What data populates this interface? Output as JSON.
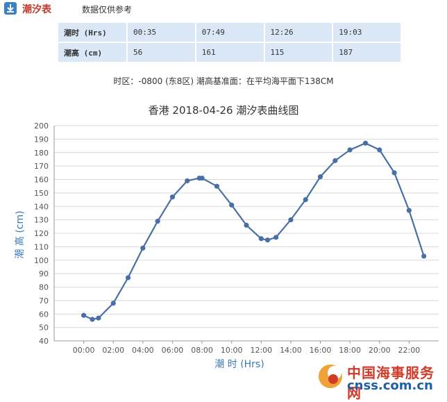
{
  "header": {
    "title": "潮汐表",
    "note": "数据仅供参考",
    "icon": "download-icon"
  },
  "tide_table": {
    "row_time_label": "潮时 (Hrs)",
    "row_height_label": "潮高 (cm)",
    "times": [
      "00:35",
      "07:49",
      "12:26",
      "19:03"
    ],
    "heights": [
      "56",
      "161",
      "115",
      "187"
    ]
  },
  "timezone_note": "时区：-0800 (东8区) 潮高基准面：在平均海平面下138CM",
  "chart_data": {
    "type": "line",
    "title": "香港 2018-04-26 潮汐表曲线图",
    "xlabel": "潮 时 (Hrs)",
    "ylabel": "潮 高 (cm)",
    "ylim": [
      40,
      200
    ],
    "yticks": [
      40,
      50,
      60,
      70,
      80,
      90,
      100,
      110,
      120,
      130,
      140,
      150,
      160,
      170,
      180,
      190,
      200
    ],
    "xlim": [
      -2,
      24
    ],
    "xticks": [
      "00:00",
      "02:00",
      "04:00",
      "06:00",
      "08:00",
      "10:00",
      "12:00",
      "14:00",
      "16:00",
      "18:00",
      "20:00",
      "22:00"
    ],
    "grid": "horizontal",
    "series": [
      {
        "color": "#4a6fa5",
        "points": [
          [
            0,
            59
          ],
          [
            0.583,
            56
          ],
          [
            1,
            57
          ],
          [
            2,
            68
          ],
          [
            3,
            87
          ],
          [
            4,
            109
          ],
          [
            5,
            129
          ],
          [
            6,
            147
          ],
          [
            7,
            159
          ],
          [
            7.817,
            161
          ],
          [
            8,
            161
          ],
          [
            9,
            155
          ],
          [
            10,
            141
          ],
          [
            11,
            126
          ],
          [
            12,
            116
          ],
          [
            12.433,
            115
          ],
          [
            13,
            117
          ],
          [
            14,
            130
          ],
          [
            15,
            145
          ],
          [
            16,
            162
          ],
          [
            17,
            174
          ],
          [
            18,
            182
          ],
          [
            19.05,
            187
          ],
          [
            20,
            182
          ],
          [
            21,
            165
          ],
          [
            22,
            137
          ],
          [
            23,
            103
          ]
        ]
      }
    ]
  },
  "watermark": {
    "name": "中国海事服务网",
    "url": "cnss.com.cn"
  }
}
